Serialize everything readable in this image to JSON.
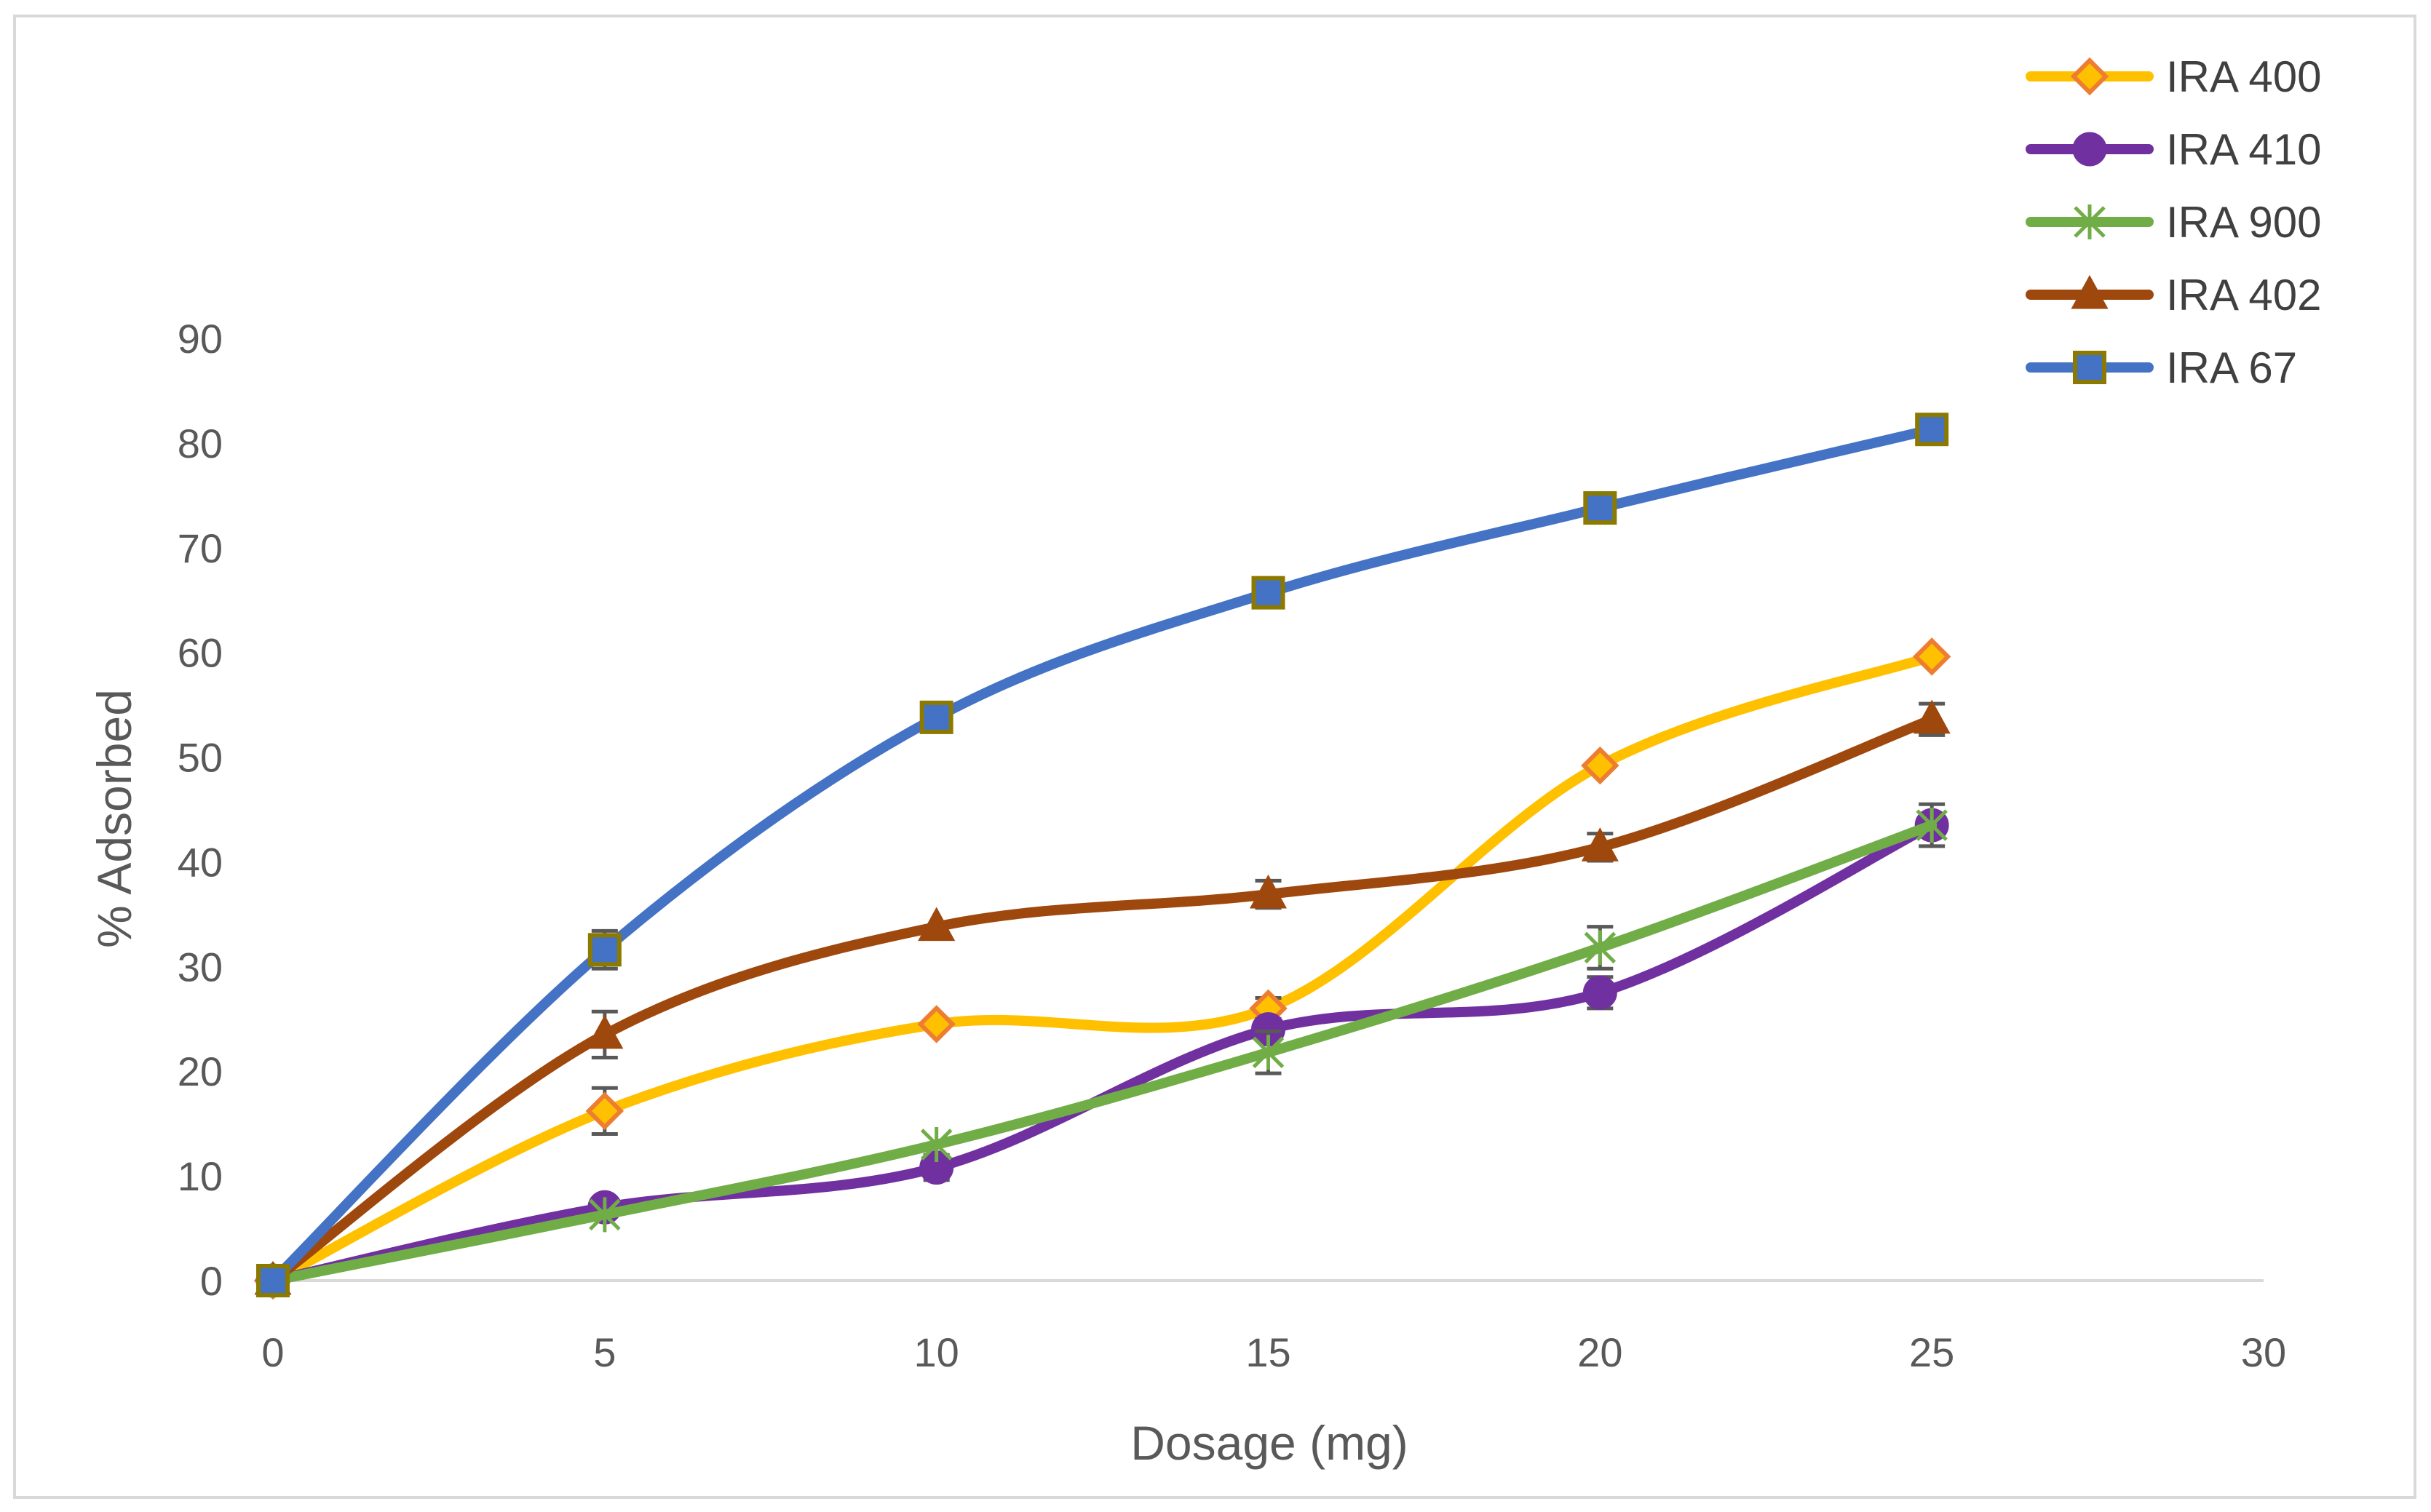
{
  "chart_data": {
    "type": "line",
    "title": "",
    "xlabel": "Dosage (mg)",
    "ylabel": "% Adsorbed",
    "xlim": [
      0,
      30
    ],
    "ylim": [
      0,
      90
    ],
    "x_ticks": [
      0,
      5,
      10,
      15,
      20,
      25,
      30
    ],
    "y_ticks": [
      0,
      10,
      20,
      30,
      40,
      50,
      60,
      70,
      80,
      90
    ],
    "grid": false,
    "legend_position": "top-right",
    "x": [
      0,
      5,
      10,
      15,
      20,
      25
    ],
    "series": [
      {
        "name": "IRA 400",
        "marker": "diamond",
        "color": "#FFC000",
        "marker_fill": "#FFC000",
        "marker_edge": "#ED7D31",
        "values": [
          0,
          16.2,
          24.5,
          26.0,
          49.2,
          59.6
        ],
        "errors": [
          0,
          2.2,
          0,
          1.0,
          0,
          0
        ]
      },
      {
        "name": "IRA 410",
        "marker": "circle",
        "color": "#7030A0",
        "marker_fill": "#7030A0",
        "marker_edge": "#7030A0",
        "values": [
          0,
          7.0,
          10.8,
          24.0,
          27.5,
          43.5
        ],
        "errors": [
          0,
          0,
          1.2,
          0,
          1.5,
          2.0
        ]
      },
      {
        "name": "IRA 900",
        "marker": "asterisk",
        "color": "#70AD47",
        "marker_fill": "#70AD47",
        "marker_edge": "#70AD47",
        "values": [
          0,
          6.3,
          13.0,
          21.8,
          31.8,
          43.5
        ],
        "errors": [
          0,
          0,
          0,
          2.0,
          2.0,
          0
        ]
      },
      {
        "name": "IRA 402",
        "marker": "triangle",
        "color": "#9E480E",
        "marker_fill": "#9E480E",
        "marker_edge": "#9E480E",
        "values": [
          0,
          23.5,
          33.8,
          36.9,
          41.4,
          53.6
        ],
        "errors": [
          0,
          2.2,
          0,
          1.3,
          1.3,
          1.5
        ]
      },
      {
        "name": "IRA 67",
        "marker": "square",
        "color": "#4472C4",
        "marker_fill": "#4472C4",
        "marker_edge": "#8C7A00",
        "values": [
          0,
          31.6,
          53.8,
          65.7,
          73.8,
          81.3
        ],
        "errors": [
          0,
          1.8,
          0,
          0,
          0,
          0
        ]
      }
    ]
  }
}
